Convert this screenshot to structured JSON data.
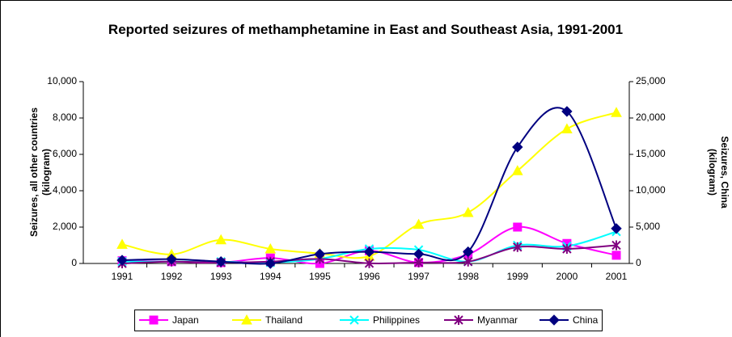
{
  "chart_data": {
    "type": "line",
    "title": "Reported seizures of methamphetamine in East and Southeast Asia, 1991-2001",
    "y_label": "Seizures, all other countries (kilogram)",
    "y2_label": "Seizures, China (kilogram)",
    "categories": [
      "1991",
      "1992",
      "1993",
      "1994",
      "1995",
      "1996",
      "1997",
      "1998",
      "1999",
      "2000",
      "2001"
    ],
    "series": [
      {
        "name": "Japan",
        "color": "#FF00FF",
        "marker": "square",
        "values": [
          150,
          100,
          50,
          300,
          0,
          700,
          50,
          500,
          2000,
          1100,
          450
        ]
      },
      {
        "name": "Thailand",
        "color": "#FFFF00",
        "marker": "triangle",
        "values": [
          1050,
          500,
          1300,
          800,
          550,
          400,
          2150,
          2800,
          5100,
          7400,
          8300
        ]
      },
      {
        "name": "Philippines",
        "color": "#00FFFF",
        "marker": "x",
        "values": [
          100,
          100,
          100,
          50,
          250,
          800,
          750,
          100,
          1000,
          950,
          1750
        ]
      },
      {
        "name": "Myanmar",
        "color": "#800080",
        "marker": "star",
        "values": [
          0,
          100,
          50,
          100,
          250,
          10,
          50,
          100,
          900,
          800,
          1000
        ]
      },
      {
        "name": "China",
        "color": "#000080",
        "marker": "diamond",
        "axis": "y2",
        "values": [
          450,
          600,
          250,
          0,
          1300,
          1600,
          1300,
          1600,
          16000,
          20900,
          4800
        ]
      }
    ],
    "ylim": [
      0,
      10000
    ],
    "yticks": [
      0,
      {
        "value": 2000,
        "label": "2,000"
      },
      {
        "value": 4000,
        "label": "4,000"
      },
      {
        "value": 6000,
        "label": "6,000"
      },
      {
        "value": 8000,
        "label": "8,000"
      },
      {
        "value": 10000,
        "label": "10,000"
      }
    ],
    "y2lim": [
      0,
      25000
    ],
    "y2ticks": [
      0,
      {
        "value": 5000,
        "label": "5,000"
      },
      {
        "value": 10000,
        "label": "10,000"
      },
      {
        "value": 15000,
        "label": "15,000"
      },
      {
        "value": 20000,
        "label": "20,000"
      },
      {
        "value": 25000,
        "label": "25,000"
      }
    ],
    "legend": "bottom"
  }
}
